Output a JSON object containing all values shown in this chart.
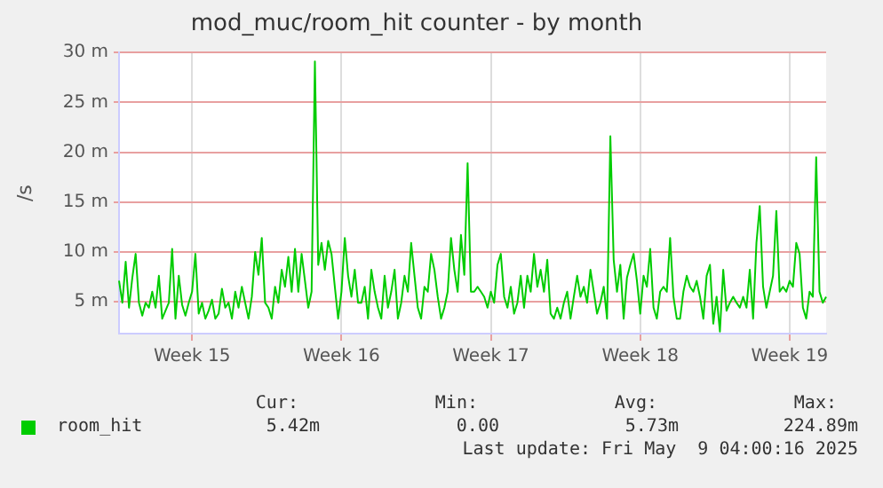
{
  "chart_data": {
    "type": "line",
    "title": "mod_muc/room_hit counter - by month",
    "ylabel": "/s",
    "categories": [
      null,
      null,
      null,
      null,
      null,
      null,
      null,
      null,
      null,
      null,
      null,
      null,
      null,
      null,
      null,
      null,
      null,
      null,
      null,
      null,
      null,
      null,
      "Week 15",
      null,
      null,
      null,
      null,
      null,
      null,
      null,
      null,
      null,
      null,
      null,
      null,
      null,
      null,
      null,
      null,
      null,
      null,
      null,
      null,
      null,
      null,
      null,
      null,
      null,
      null,
      null,
      null,
      null,
      null,
      null,
      null,
      null,
      null,
      null,
      null,
      null,
      null,
      null,
      null,
      null,
      null,
      null,
      null,
      "Week 16",
      null,
      null,
      null,
      null,
      null,
      null,
      null,
      null,
      null,
      null,
      null,
      null,
      null,
      null,
      null,
      null,
      null,
      null,
      null,
      null,
      null,
      null,
      null,
      null,
      null,
      null,
      null,
      null,
      null,
      null,
      null,
      null,
      null,
      null,
      null,
      null,
      null,
      null,
      null,
      null,
      null,
      null,
      null,
      null,
      "Week 17",
      null,
      null,
      null,
      null,
      null,
      null,
      null,
      null,
      null,
      null,
      null,
      null,
      null,
      null,
      null,
      null,
      null,
      null,
      null,
      null,
      null,
      null,
      null,
      null,
      null,
      null,
      null,
      null,
      null,
      null,
      null,
      null,
      null,
      null,
      null,
      null,
      null,
      null,
      null,
      null,
      null,
      null,
      null,
      null,
      "Week 18",
      null,
      null,
      null,
      null,
      null,
      null,
      null,
      null,
      null,
      null,
      null,
      null,
      null,
      null,
      null,
      null,
      null,
      null,
      null,
      null,
      null,
      null,
      null,
      null,
      null,
      null,
      null,
      null,
      null,
      null,
      null,
      null,
      null,
      null,
      null,
      null,
      null,
      null,
      null,
      null,
      null,
      null,
      null,
      null,
      "Week 19",
      null,
      null,
      null,
      null,
      null,
      null,
      null,
      null,
      null,
      null,
      null
    ],
    "ylim": [
      1.8,
      30
    ],
    "yticks": [
      {
        "value": 5,
        "label": "5 m"
      },
      {
        "value": 10,
        "label": "10 m"
      },
      {
        "value": 15,
        "label": "15 m"
      },
      {
        "value": 20,
        "label": "20 m"
      },
      {
        "value": 25,
        "label": "25 m"
      },
      {
        "value": 30,
        "label": "30 m"
      }
    ],
    "grid": true,
    "legend": "bottom left",
    "annotations": [
      "Cur:",
      "Min:",
      "Avg:",
      "Max:",
      "5.42m",
      "0.00",
      "5.73m",
      "224.89m",
      "Last update: Fri May  9 04:00:16 2025"
    ],
    "series": [
      {
        "name": "room_hit",
        "color": "#00cc00",
        "values": [
          7.1,
          4.9,
          9.0,
          4.4,
          7.4,
          9.8,
          4.9,
          3.6,
          4.9,
          4.4,
          6.0,
          4.4,
          7.6,
          3.3,
          4.1,
          4.9,
          10.3,
          3.3,
          7.6,
          4.7,
          3.6,
          4.9,
          6.0,
          9.8,
          3.8,
          4.9,
          3.3,
          4.1,
          5.2,
          3.3,
          3.8,
          6.3,
          4.4,
          4.9,
          3.3,
          6.0,
          4.4,
          6.5,
          4.9,
          3.3,
          5.5,
          10.0,
          7.7,
          11.4,
          4.9,
          4.4,
          3.3,
          6.5,
          4.9,
          8.2,
          6.5,
          9.5,
          6.0,
          10.3,
          6.0,
          9.8,
          7.1,
          4.4,
          6.0,
          29.1,
          8.7,
          10.9,
          8.2,
          11.1,
          9.8,
          6.5,
          3.3,
          6.0,
          11.4,
          7.6,
          5.5,
          8.2,
          4.9,
          4.9,
          6.5,
          3.3,
          8.2,
          6.0,
          4.4,
          3.3,
          7.6,
          4.4,
          6.0,
          8.2,
          3.3,
          4.9,
          7.6,
          6.0,
          10.9,
          7.6,
          4.4,
          3.3,
          6.5,
          6.0,
          9.8,
          8.2,
          5.5,
          3.3,
          4.4,
          6.0,
          11.4,
          8.2,
          6.0,
          11.7,
          7.7,
          18.9,
          6.0,
          6.0,
          6.5,
          6.0,
          5.5,
          4.4,
          6.0,
          4.9,
          8.7,
          9.8,
          5.5,
          4.4,
          6.5,
          3.8,
          4.9,
          7.6,
          4.4,
          7.6,
          6.0,
          9.8,
          6.5,
          8.2,
          6.0,
          9.2,
          3.8,
          3.3,
          4.4,
          3.3,
          4.9,
          6.0,
          3.3,
          5.5,
          7.6,
          5.5,
          6.5,
          4.9,
          8.2,
          6.0,
          3.8,
          4.9,
          6.5,
          3.3,
          21.6,
          9.2,
          6.0,
          8.7,
          3.3,
          7.4,
          8.7,
          9.8,
          7.1,
          3.8,
          7.6,
          6.5,
          10.3,
          4.4,
          3.3,
          6.0,
          6.5,
          6.0,
          11.4,
          5.5,
          3.3,
          3.3,
          6.0,
          7.6,
          6.5,
          6.0,
          7.1,
          5.5,
          3.3,
          7.6,
          8.7,
          2.8,
          5.5,
          2.0,
          8.2,
          4.1,
          4.9,
          5.5,
          4.9,
          4.4,
          5.5,
          4.4,
          8.2,
          3.3,
          10.9,
          14.6,
          6.5,
          4.4,
          6.0,
          7.6,
          14.1,
          6.0,
          6.5,
          6.0,
          7.1,
          6.5,
          10.9,
          9.8,
          4.4,
          3.3,
          6.0,
          5.5,
          19.5,
          6.0,
          4.9,
          5.5
        ]
      }
    ]
  }
}
